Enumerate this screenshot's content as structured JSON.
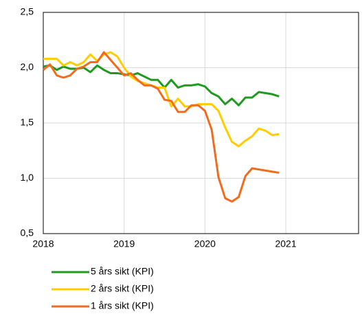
{
  "chart_data": {
    "type": "line",
    "x": [
      2018.0,
      2018.083,
      2018.167,
      2018.25,
      2018.333,
      2018.417,
      2018.5,
      2018.583,
      2018.667,
      2018.75,
      2018.833,
      2018.917,
      2019.0,
      2019.083,
      2019.167,
      2019.25,
      2019.333,
      2019.417,
      2019.5,
      2019.583,
      2019.667,
      2019.75,
      2019.833,
      2019.917,
      2020.0,
      2020.083,
      2020.167,
      2020.25,
      2020.333,
      2020.417,
      2020.5,
      2020.583,
      2020.667,
      2020.75,
      2020.833,
      2020.917
    ],
    "series": [
      {
        "name": "5 års sikt (KPI)",
        "color": "#1f9a1f",
        "values": [
          2.01,
          2.02,
          1.98,
          2.01,
          1.99,
          1.99,
          2.0,
          1.96,
          2.02,
          1.98,
          1.95,
          1.95,
          1.94,
          1.93,
          1.95,
          1.92,
          1.89,
          1.89,
          1.82,
          1.89,
          1.82,
          1.84,
          1.84,
          1.85,
          1.83,
          1.77,
          1.74,
          1.67,
          1.72,
          1.66,
          1.73,
          1.73,
          1.78,
          1.77,
          1.76,
          1.74
        ]
      },
      {
        "name": "2 års sikt (KPI)",
        "color": "#ffcc00",
        "values": [
          2.08,
          2.08,
          2.08,
          2.02,
          2.05,
          2.02,
          2.05,
          2.12,
          2.06,
          2.12,
          2.14,
          2.1,
          2.0,
          1.92,
          1.88,
          1.86,
          1.84,
          1.82,
          1.82,
          1.65,
          1.72,
          1.65,
          1.65,
          1.67,
          1.67,
          1.67,
          1.61,
          1.46,
          1.33,
          1.29,
          1.34,
          1.38,
          1.45,
          1.43,
          1.39,
          1.4
        ]
      },
      {
        "name": "1 års sikt (KPI)",
        "color": "#f26b1d",
        "values": [
          1.98,
          2.03,
          1.93,
          1.91,
          1.93,
          1.99,
          2.01,
          2.05,
          2.05,
          2.14,
          2.07,
          2.0,
          1.93,
          1.95,
          1.89,
          1.84,
          1.84,
          1.81,
          1.71,
          1.7,
          1.6,
          1.6,
          1.66,
          1.66,
          1.61,
          1.44,
          1.01,
          0.82,
          0.79,
          0.83,
          1.02,
          1.09,
          1.08,
          1.07,
          1.06,
          1.05
        ]
      }
    ],
    "xlim": [
      2018,
      2021.9
    ],
    "xticks": [
      2018,
      2019,
      2020,
      2021
    ],
    "ylim": [
      0.5,
      2.5
    ],
    "yticks": [
      {
        "value": 0.5,
        "label": "0,5"
      },
      {
        "value": 1.0,
        "label": "1,0"
      },
      {
        "value": 1.5,
        "label": "1,5"
      },
      {
        "value": 2.0,
        "label": "2,0"
      },
      {
        "value": 2.5,
        "label": "2,5"
      }
    ],
    "grid": true,
    "legend": "bottom"
  }
}
